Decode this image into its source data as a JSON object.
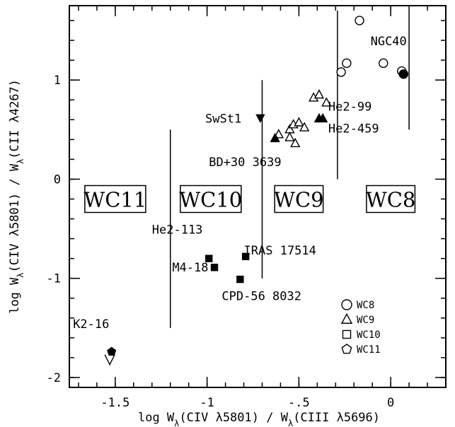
{
  "chart_data": {
    "type": "scatter",
    "xlabel": "log W_λ(CIV λ5801) / W_λ(CIII λ5696)",
    "ylabel": "log W_λ(CIV λ5801) / W_λ(CII λ4267)",
    "xlim": [
      -1.75,
      0.3
    ],
    "ylim": [
      -2.1,
      1.75
    ],
    "x_ticks": [
      {
        "value": -1.5,
        "label": "-1.5"
      },
      {
        "value": -1.0,
        "label": "-1"
      },
      {
        "value": -0.5,
        "label": "-.5"
      },
      {
        "value": 0.0,
        "label": "0"
      }
    ],
    "y_ticks": [
      {
        "value": -2,
        "label": "-2"
      },
      {
        "value": -1,
        "label": "-1"
      },
      {
        "value": 0,
        "label": "0"
      },
      {
        "value": 1,
        "label": "1"
      }
    ],
    "grid": false,
    "legend_position": "bottom-right",
    "series": [
      {
        "name": "WC8",
        "marker": "circle",
        "points": [
          {
            "x": -0.17,
            "y": 1.6,
            "filled": false
          },
          {
            "x": -0.27,
            "y": 1.08,
            "filled": false
          },
          {
            "x": -0.24,
            "y": 1.17,
            "filled": false
          },
          {
            "x": -0.04,
            "y": 1.17,
            "filled": false
          },
          {
            "x": 0.06,
            "y": 1.09,
            "filled": false
          },
          {
            "x": 0.07,
            "y": 1.06,
            "filled": true
          }
        ]
      },
      {
        "name": "WC9",
        "marker": "triangle",
        "points": [
          {
            "x": -0.61,
            "y": 0.45,
            "filled": false
          },
          {
            "x": -0.55,
            "y": 0.5,
            "filled": false
          },
          {
            "x": -0.53,
            "y": 0.55,
            "filled": false
          },
          {
            "x": -0.5,
            "y": 0.57,
            "filled": false
          },
          {
            "x": -0.47,
            "y": 0.52,
            "filled": false
          },
          {
            "x": -0.52,
            "y": 0.36,
            "filled": false
          },
          {
            "x": -0.55,
            "y": 0.42,
            "filled": false
          },
          {
            "x": -0.42,
            "y": 0.82,
            "filled": false
          },
          {
            "x": -0.39,
            "y": 0.85,
            "filled": false
          },
          {
            "x": -0.35,
            "y": 0.77,
            "filled": false
          },
          {
            "x": -0.63,
            "y": 0.41,
            "filled": true
          },
          {
            "x": -0.39,
            "y": 0.61,
            "filled": true
          },
          {
            "x": -0.37,
            "y": 0.61,
            "filled": true
          }
        ]
      },
      {
        "name": "WC10",
        "marker": "square",
        "points": [
          {
            "x": -0.99,
            "y": -0.8,
            "filled": true
          },
          {
            "x": -0.96,
            "y": -0.89,
            "filled": true
          },
          {
            "x": -0.82,
            "y": -1.01,
            "filled": true
          },
          {
            "x": -0.79,
            "y": -0.78,
            "filled": true
          }
        ]
      },
      {
        "name": "WC11",
        "marker": "pentagon",
        "points": [
          {
            "x": -1.52,
            "y": -1.74,
            "filled": true
          }
        ]
      }
    ],
    "extra_markers": [
      {
        "label": "SwSt1",
        "marker": "triangle-down",
        "filled": true,
        "x": -0.71,
        "y": 0.62
      },
      {
        "label": "K2-16 upper limit",
        "marker": "open-v",
        "filled": false,
        "x": -1.53,
        "y": -1.82
      }
    ],
    "vertical_lines": [
      {
        "x": -1.2,
        "y_from": -1.5,
        "y_to": 0.5
      },
      {
        "x": -0.7,
        "y_from": -1.0,
        "y_to": 1.0
      },
      {
        "x": -0.29,
        "y_from": 0.0,
        "y_to": 1.7
      },
      {
        "x": 0.1,
        "y_from": 0.5,
        "y_to": 1.7
      }
    ],
    "annotations": [
      {
        "text": "NGC40",
        "x": -0.11,
        "y": 1.35
      },
      {
        "text": "SwSt1",
        "x": -1.01,
        "y": 0.57
      },
      {
        "text": "He2-99",
        "x": -0.34,
        "y": 0.69
      },
      {
        "text": "He2-459",
        "x": -0.34,
        "y": 0.47
      },
      {
        "text": "BD+30 3639",
        "x": -0.99,
        "y": 0.13
      },
      {
        "text": "He2-113",
        "x": -1.3,
        "y": -0.55
      },
      {
        "text": "IRAS 17514",
        "x": -0.8,
        "y": -0.76
      },
      {
        "text": "M4-18",
        "x": -1.19,
        "y": -0.93
      },
      {
        "text": "CPD-56 8032",
        "x": -0.92,
        "y": -1.22
      },
      {
        "text": "K2-16",
        "x": -1.73,
        "y": -1.5
      }
    ],
    "class_labels": [
      {
        "text": "WC11",
        "x": -1.5,
        "y": -0.2
      },
      {
        "text": "WC10",
        "x": -0.98,
        "y": -0.2
      },
      {
        "text": "WC9",
        "x": -0.5,
        "y": -0.2
      },
      {
        "text": "WC8",
        "x": -0.0,
        "y": -0.2
      }
    ],
    "legend": [
      {
        "label": "WC8",
        "marker": "circle"
      },
      {
        "label": "WC9",
        "marker": "triangle"
      },
      {
        "label": "WC10",
        "marker": "square"
      },
      {
        "label": "WC11",
        "marker": "pentagon"
      }
    ]
  }
}
